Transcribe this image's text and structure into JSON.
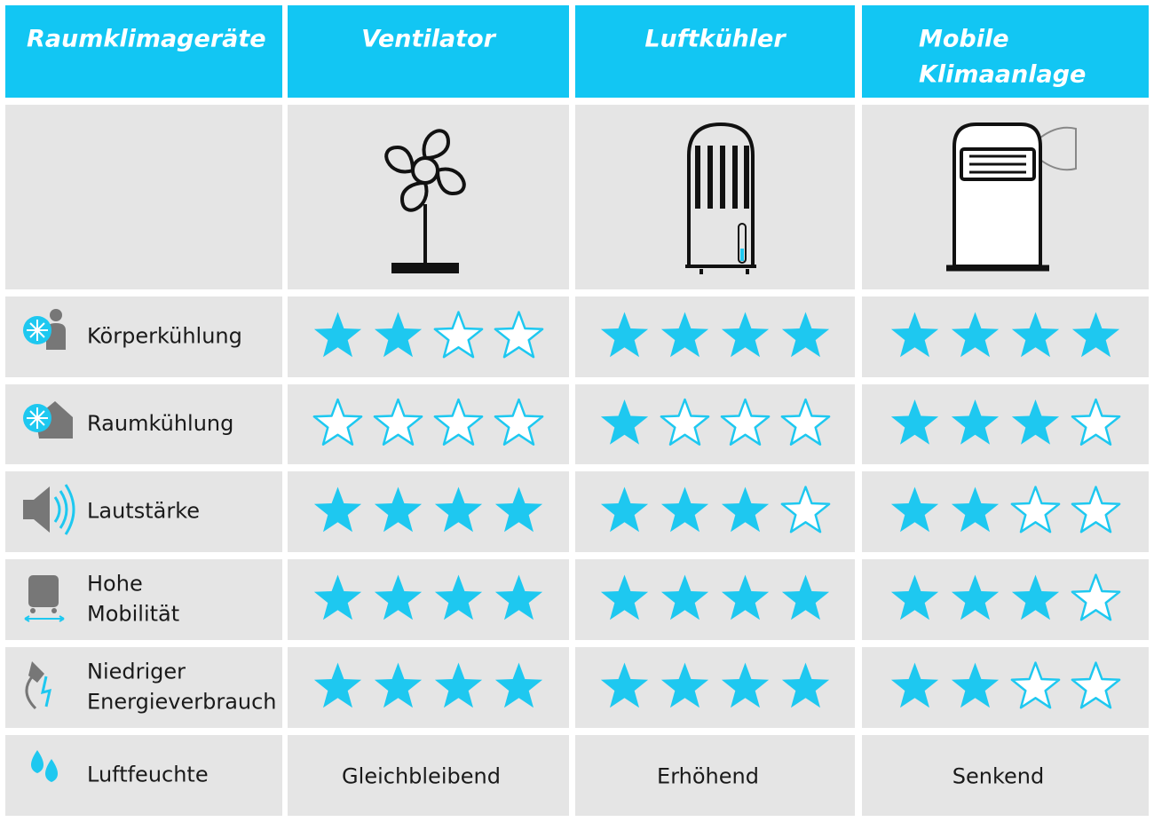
{
  "header": {
    "cells": [
      [
        "Raumklimageräte"
      ],
      [
        "Ventilator"
      ],
      [
        "Luftkühler"
      ],
      [
        "Mobile",
        "Klimaanlage"
      ]
    ]
  },
  "rows": [
    {
      "label": [
        "Körperkühlung"
      ],
      "ratings": [
        2,
        4,
        4
      ]
    },
    {
      "label": [
        "Raumkühlung"
      ],
      "ratings": [
        0,
        1,
        3
      ]
    },
    {
      "label": [
        "Lautstärke"
      ],
      "ratings": [
        4,
        3,
        2
      ]
    },
    {
      "label": [
        "Hohe",
        "Mobilität"
      ],
      "ratings": [
        4,
        4,
        3
      ]
    },
    {
      "label": [
        "Niedriger",
        "Energieverbrauch"
      ],
      "ratings": [
        4,
        4,
        2
      ]
    },
    {
      "label": [
        "Luftfeuchte"
      ],
      "values": [
        "Gleichbleibend",
        "Erhöhend",
        "Senkend"
      ]
    }
  ]
}
